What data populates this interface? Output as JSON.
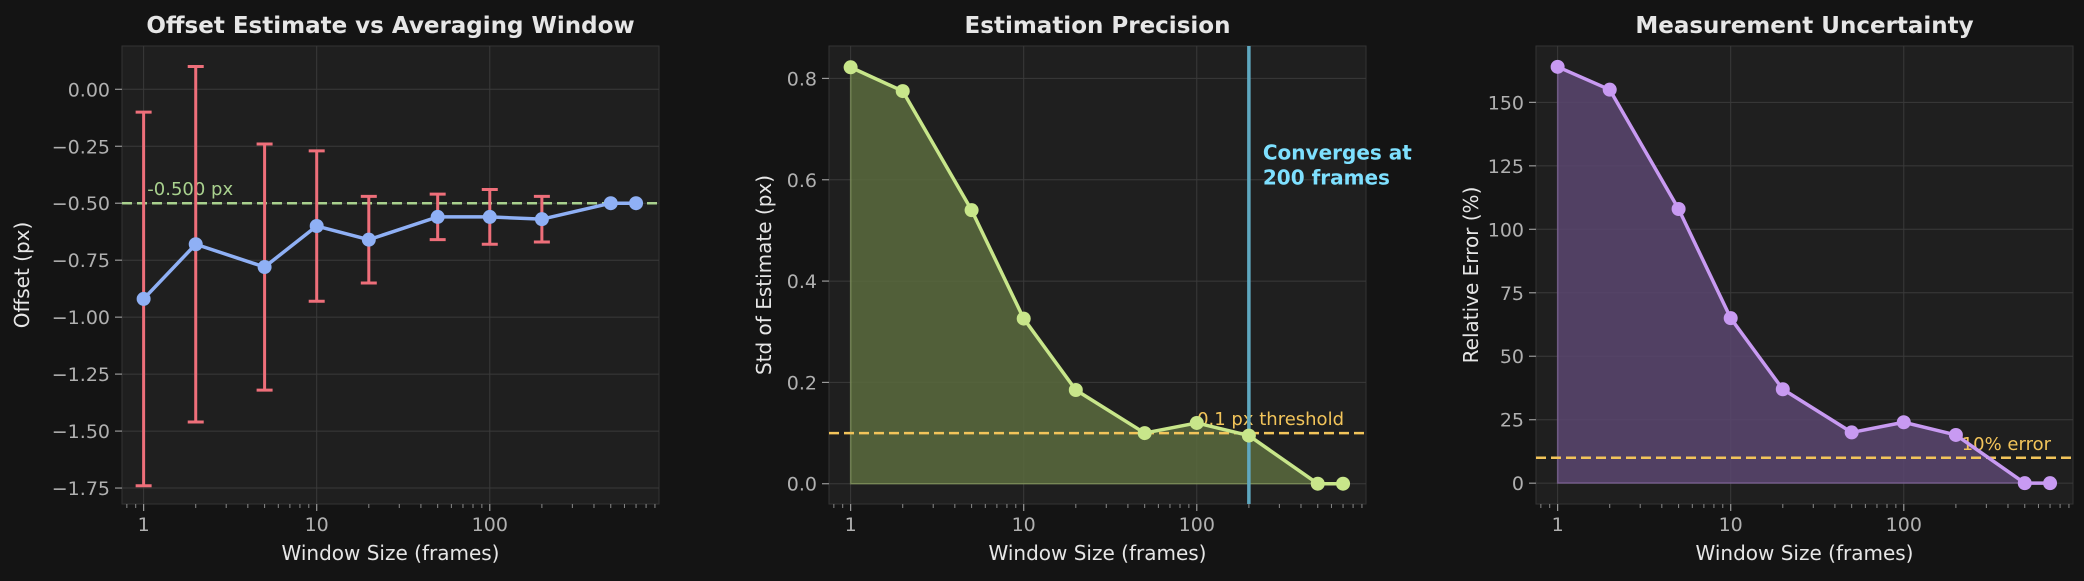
{
  "colors": {
    "background": "#141414",
    "plot_bg": "#1f1f1f",
    "grid": "#3a3a3a",
    "text": "#e6e6e6",
    "tick_text": "#b0b0b0",
    "offset_line": "#8fb0f5",
    "error_bar": "#ee6f7a",
    "reference_green": "#a9d18e",
    "std_line": "#c8e68a",
    "std_fill": "#5a6b3e",
    "threshold": "#f2c45a",
    "converge_line": "#5fa8c0",
    "converge_text": "#7ee0ff",
    "rel_line": "#c89af2",
    "rel_fill": "#5a4670"
  },
  "chart_data": [
    {
      "type": "line",
      "title": "Offset Estimate vs Averaging Window",
      "xlabel": "Window Size (frames)",
      "ylabel": "Offset (px)",
      "xscale": "log",
      "xlim": [
        0.75,
        950
      ],
      "ylim": [
        -1.82,
        0.19
      ],
      "xticks": [
        1,
        10,
        100
      ],
      "xtick_labels": [
        "1",
        "10",
        "100"
      ],
      "yticks": [
        0.0,
        -0.25,
        -0.5,
        -0.75,
        -1.0,
        -1.25,
        -1.5,
        -1.75
      ],
      "ytick_labels": [
        "0.00",
        "−0.25",
        "−0.50",
        "−0.75",
        "−1.00",
        "−1.25",
        "−1.50",
        "−1.75"
      ],
      "grid": true,
      "series": [
        {
          "x": [
            1,
            2,
            5,
            10,
            20,
            50,
            100,
            200,
            500,
            700
          ],
          "y": [
            -0.92,
            -0.68,
            -0.78,
            -0.6,
            -0.66,
            -0.56,
            -0.56,
            -0.57,
            -0.5,
            -0.5
          ],
          "yerr": [
            0.82,
            0.78,
            0.54,
            0.33,
            0.19,
            0.1,
            0.12,
            0.1,
            null,
            null
          ]
        }
      ],
      "hlines": [
        {
          "y": -0.5,
          "label": "-0.500 px",
          "style": "dashed"
        }
      ]
    },
    {
      "type": "area",
      "title": "Estimation Precision",
      "xlabel": "Window Size (frames)",
      "ylabel": "Std of Estimate (px)",
      "xscale": "log",
      "xlim": [
        0.75,
        950
      ],
      "ylim": [
        -0.04,
        0.864
      ],
      "xticks": [
        1,
        10,
        100
      ],
      "xtick_labels": [
        "1",
        "10",
        "100"
      ],
      "yticks": [
        0.0,
        0.2,
        0.4,
        0.6,
        0.8
      ],
      "ytick_labels": [
        "0.0",
        "0.2",
        "0.4",
        "0.6",
        "0.8"
      ],
      "grid": true,
      "series": [
        {
          "x": [
            1,
            2,
            5,
            10,
            20,
            50,
            100,
            200,
            500,
            700
          ],
          "y": [
            0.822,
            0.775,
            0.54,
            0.326,
            0.185,
            0.1,
            0.12,
            0.095,
            0.0,
            0.0
          ]
        }
      ],
      "hlines": [
        {
          "y": 0.1,
          "label": "0.1 px threshold",
          "style": "dashed"
        }
      ],
      "vlines": [
        {
          "x": 200,
          "label": "Converges at\n200 frames"
        }
      ]
    },
    {
      "type": "area",
      "title": "Measurement Uncertainty",
      "xlabel": "Window Size (frames)",
      "ylabel": "Relative Error (%)",
      "xscale": "log",
      "xlim": [
        0.75,
        950
      ],
      "ylim": [
        -8.2,
        172.2
      ],
      "xticks": [
        1,
        10,
        100
      ],
      "xtick_labels": [
        "1",
        "10",
        "100"
      ],
      "yticks": [
        0,
        25,
        50,
        75,
        100,
        125,
        150
      ],
      "ytick_labels": [
        "0",
        "25",
        "50",
        "75",
        "100",
        "125",
        "150"
      ],
      "grid": true,
      "series": [
        {
          "x": [
            1,
            2,
            5,
            10,
            20,
            50,
            100,
            200,
            500,
            700
          ],
          "y": [
            164,
            155,
            108,
            65,
            37,
            20,
            24,
            19,
            0,
            0
          ]
        }
      ],
      "hlines": [
        {
          "y": 10,
          "label": "10% error",
          "style": "dashed"
        }
      ]
    }
  ]
}
